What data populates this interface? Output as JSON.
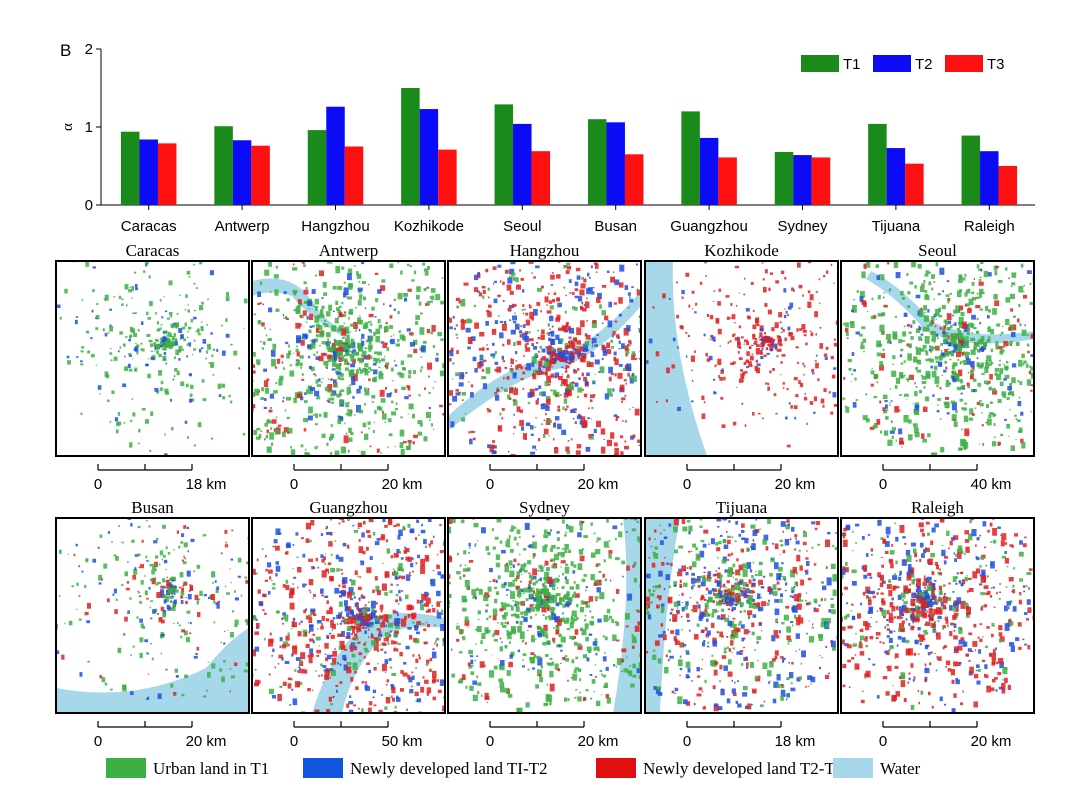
{
  "chart_data": {
    "type": "bar",
    "panel_label": "B",
    "ylabel": "α",
    "ylim": [
      0,
      2
    ],
    "yticks": [
      0,
      1,
      2
    ],
    "categories": [
      "Caracas",
      "Antwerp",
      "Hangzhou",
      "Kozhikode",
      "Seoul",
      "Busan",
      "Guangzhou",
      "Sydney",
      "Tijuana",
      "Raleigh"
    ],
    "series": [
      {
        "name": "T1",
        "color": "#1a8a1a",
        "values": [
          0.94,
          1.01,
          0.96,
          1.5,
          1.29,
          1.1,
          1.2,
          0.68,
          1.04,
          0.89
        ]
      },
      {
        "name": "T2",
        "color": "#0b0bf5",
        "values": [
          0.84,
          0.83,
          1.26,
          1.23,
          1.04,
          1.06,
          0.86,
          0.64,
          0.73,
          0.69
        ]
      },
      {
        "name": "T3",
        "color": "#ff1010",
        "values": [
          0.79,
          0.76,
          0.75,
          0.71,
          0.69,
          0.65,
          0.61,
          0.61,
          0.53,
          0.5
        ]
      }
    ],
    "legend_position": "top-right"
  },
  "maps": [
    {
      "city": "Caracas",
      "scale": {
        "ticks": [
          "0",
          "18 km"
        ]
      },
      "land": "sparse-west",
      "water": "none"
    },
    {
      "city": "Antwerp",
      "scale": {
        "ticks": [
          "0",
          "20 km"
        ]
      },
      "land": "green-dense",
      "water": "river-northwest"
    },
    {
      "city": "Hangzhou",
      "scale": {
        "ticks": [
          "0",
          "20 km"
        ]
      },
      "land": "mixed-red",
      "water": "river-diagonal"
    },
    {
      "city": "Kozhikode",
      "scale": {
        "ticks": [
          "0",
          "20 km"
        ]
      },
      "land": "red-sparse",
      "water": "coast-west"
    },
    {
      "city": "Seoul",
      "scale": {
        "ticks": [
          "0",
          "40 km"
        ]
      },
      "land": "green-dense",
      "water": "river-west"
    },
    {
      "city": "Busan",
      "scale": {
        "ticks": [
          "0",
          "20 km"
        ]
      },
      "land": "mixed-sparse",
      "water": "sea-south"
    },
    {
      "city": "Guangzhou",
      "scale": {
        "ticks": [
          "0",
          "50 km"
        ]
      },
      "land": "mixed-red",
      "water": "delta-south"
    },
    {
      "city": "Sydney",
      "scale": {
        "ticks": [
          "0",
          "20 km"
        ]
      },
      "land": "green-dense",
      "water": "coast-east"
    },
    {
      "city": "Tijuana",
      "scale": {
        "ticks": [
          "0",
          "18 km"
        ]
      },
      "land": "mixed-blue",
      "water": "ocean-west"
    },
    {
      "city": "Raleigh",
      "scale": {
        "ticks": [
          "0",
          "20 km"
        ]
      },
      "land": "mixed-red",
      "water": "none"
    }
  ],
  "map_legend": [
    {
      "label": "Urban land in T1",
      "color": "#3cb043"
    },
    {
      "label": "Newly developed land TI-T2",
      "color": "#1155dd"
    },
    {
      "label": "Newly developed land T2-T3",
      "color": "#e01010"
    },
    {
      "label": "Water",
      "color": "#a6d8ea"
    }
  ]
}
